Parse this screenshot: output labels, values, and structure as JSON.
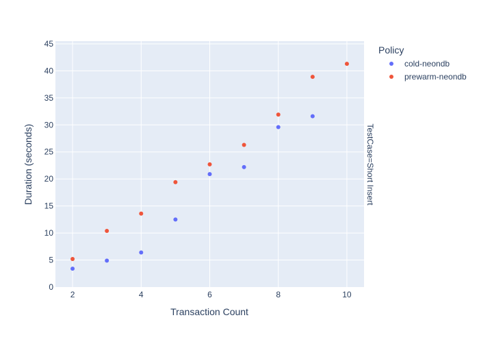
{
  "chart_data": {
    "type": "scatter",
    "xlabel": "Transaction Count",
    "ylabel": "Duration (seconds)",
    "xlim": [
      1.5,
      10.5
    ],
    "ylim": [
      0,
      45.5
    ],
    "xticks": [
      2,
      4,
      6,
      8,
      10
    ],
    "yticks": [
      0,
      5,
      10,
      15,
      20,
      25,
      30,
      35,
      40,
      45
    ],
    "grid": true,
    "facet_label": "TestCase=Short Insert",
    "legend": {
      "title": "Policy",
      "placement": "top-right outside"
    },
    "series": [
      {
        "name": "cold-neondb",
        "color": "#636efa",
        "points": [
          {
            "x": 2,
            "y": 3.4
          },
          {
            "x": 3,
            "y": 4.9
          },
          {
            "x": 4,
            "y": 6.4
          },
          {
            "x": 5,
            "y": 12.5
          },
          {
            "x": 6,
            "y": 20.9
          },
          {
            "x": 7,
            "y": 22.2
          },
          {
            "x": 8,
            "y": 29.6
          },
          {
            "x": 9,
            "y": 31.6
          }
        ]
      },
      {
        "name": "prewarm-neondb",
        "color": "#ef553b",
        "points": [
          {
            "x": 2,
            "y": 5.2
          },
          {
            "x": 3,
            "y": 10.4
          },
          {
            "x": 4,
            "y": 13.6
          },
          {
            "x": 5,
            "y": 19.4
          },
          {
            "x": 6,
            "y": 22.7
          },
          {
            "x": 7,
            "y": 26.3
          },
          {
            "x": 8,
            "y": 31.9
          },
          {
            "x": 9,
            "y": 38.9
          },
          {
            "x": 10,
            "y": 41.3
          }
        ]
      }
    ]
  }
}
